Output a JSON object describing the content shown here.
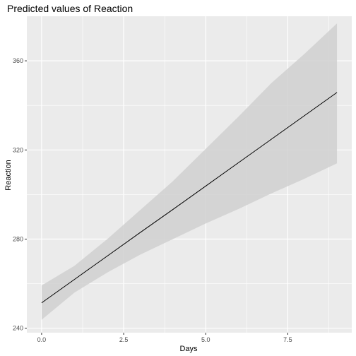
{
  "chart_data": {
    "type": "line",
    "title": "Predicted values of Reaction",
    "xlabel": "Days",
    "ylabel": "Reaction",
    "xlim": [
      -0.45,
      9.45
    ],
    "ylim": [
      238,
      380
    ],
    "x_ticks": [
      0.0,
      2.5,
      5.0,
      7.5
    ],
    "x_tick_labels": [
      "0.0",
      "2.5",
      "5.0",
      "7.5"
    ],
    "y_ticks": [
      240,
      280,
      320,
      360
    ],
    "y_tick_labels": [
      "240",
      "280",
      "320",
      "360"
    ],
    "grid": true,
    "legend": "none",
    "series": [
      {
        "x": [
          0,
          1,
          2,
          3,
          4,
          5,
          6,
          7,
          8,
          9
        ],
        "values": [
          251.4,
          261.9,
          272.4,
          282.9,
          293.3,
          303.8,
          314.3,
          324.8,
          335.3,
          345.8
        ],
        "lower": [
          243.8,
          256.0,
          265.0,
          273.0,
          280.0,
          287.0,
          293.5,
          300.5,
          307.0,
          314.0
        ],
        "upper": [
          259.2,
          268.0,
          280.0,
          293.0,
          306.0,
          320.5,
          335.0,
          350.0,
          363.0,
          376.8
        ]
      }
    ],
    "colors": {
      "panel": "#ebebeb",
      "grid": "#ffffff",
      "ribbon": "#d0d0d0",
      "line": "#000000"
    }
  }
}
